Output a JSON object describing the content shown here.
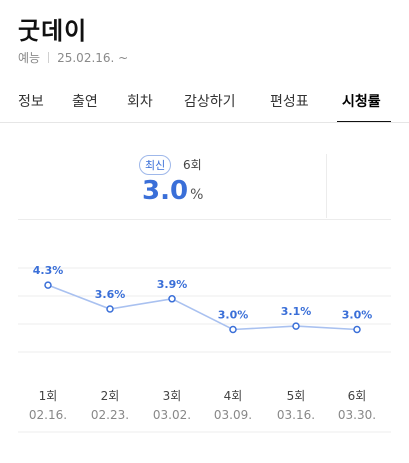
{
  "program": {
    "title": "굿데이",
    "genre": "예능",
    "date": "25.02.16. ~"
  },
  "tabs": [
    {
      "label": "정보",
      "active": false
    },
    {
      "label": "출연",
      "active": false
    },
    {
      "label": "회차",
      "active": false
    },
    {
      "label": "감상하기",
      "active": false
    },
    {
      "label": "편성표",
      "active": false
    },
    {
      "label": "시청률",
      "active": true
    }
  ],
  "summary": {
    "badge": "최신",
    "episode": "6회",
    "rating": "3.0",
    "unit": "%"
  },
  "colors": {
    "accent": "#3a6fd8",
    "line": "#a9c1f0"
  },
  "chart_data": {
    "type": "line",
    "categories": [
      "1회",
      "2회",
      "3회",
      "4회",
      "5회",
      "6회"
    ],
    "dates": [
      "02.16.",
      "02.23.",
      "03.02.",
      "03.09.",
      "03.16.",
      "03.30."
    ],
    "series": [
      {
        "values": [
          4.3,
          3.6,
          3.9,
          3.0,
          3.1,
          3.0
        ]
      }
    ],
    "value_labels": [
      "4.3%",
      "3.6%",
      "3.9%",
      "3.0%",
      "3.1%",
      "3.0%"
    ],
    "ylim": [
      2.4,
      4.8
    ],
    "grid": true
  }
}
